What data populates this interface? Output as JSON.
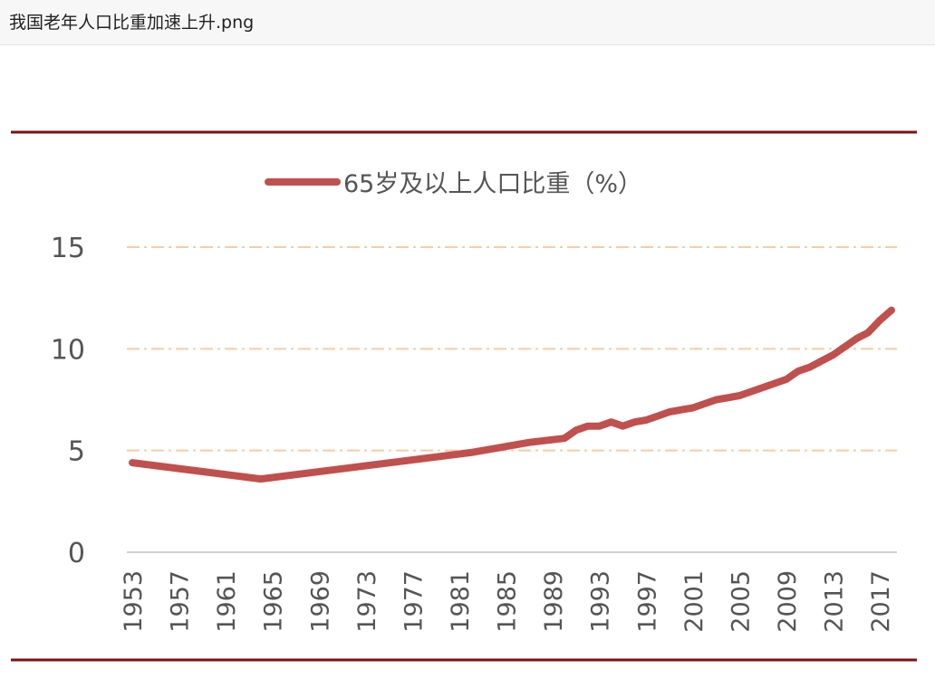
{
  "window": {
    "title": "我国老年人口比重加速上升.png"
  },
  "colors": {
    "line": "#c0504d",
    "rule": "#7b1113",
    "grid": "#f4cda8",
    "axis": "#d0d0d0",
    "text": "#555555"
  },
  "chart_data": {
    "type": "line",
    "title": "",
    "xlabel": "",
    "ylabel": "",
    "ylim": [
      0,
      15
    ],
    "yticks": [
      "0",
      "5",
      "10",
      "15"
    ],
    "xticks": [
      "1953",
      "1957",
      "1961",
      "1965",
      "1969",
      "1973",
      "1977",
      "1981",
      "1985",
      "1989",
      "1993",
      "1997",
      "2001",
      "2005",
      "2009",
      "2013",
      "2017"
    ],
    "legend": {
      "position": "top-center",
      "label": "65岁及以上人口比重（%）"
    },
    "grid": true,
    "series": [
      {
        "name": "65岁及以上人口比重（%）",
        "x": [
          1953,
          1964,
          1982,
          1987,
          1990,
          1991,
          1992,
          1993,
          1994,
          1995,
          1996,
          1997,
          1998,
          1999,
          2000,
          2001,
          2002,
          2003,
          2004,
          2005,
          2006,
          2007,
          2008,
          2009,
          2010,
          2011,
          2012,
          2013,
          2014,
          2015,
          2016,
          2017,
          2018
        ],
        "values": [
          4.4,
          3.6,
          4.9,
          5.4,
          5.6,
          6.0,
          6.2,
          6.2,
          6.4,
          6.2,
          6.4,
          6.5,
          6.7,
          6.9,
          7.0,
          7.1,
          7.3,
          7.5,
          7.6,
          7.7,
          7.9,
          8.1,
          8.3,
          8.5,
          8.9,
          9.1,
          9.4,
          9.7,
          10.1,
          10.5,
          10.8,
          11.4,
          11.9
        ]
      }
    ]
  }
}
